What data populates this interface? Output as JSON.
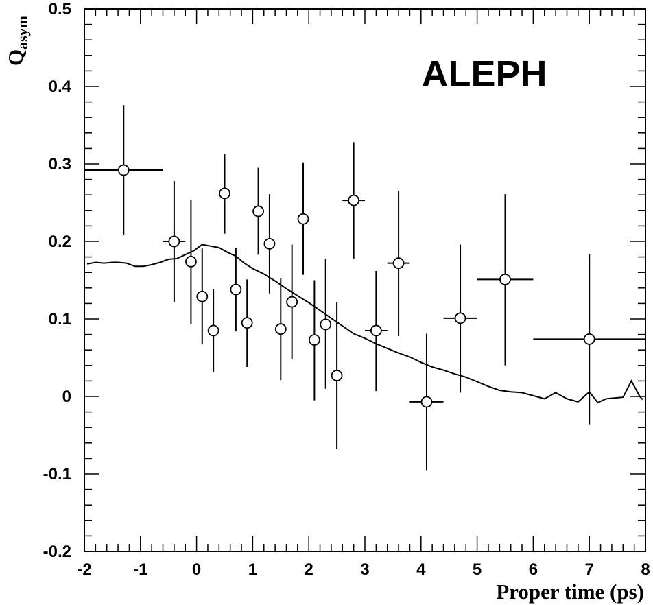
{
  "chart_data": {
    "type": "scatter",
    "title": "",
    "annotation": "ALEPH",
    "xlabel": "Proper time (ps)",
    "ylabel_main": "Q",
    "ylabel_sub": "asym",
    "xlim": [
      -2,
      8
    ],
    "ylim": [
      -0.2,
      0.5
    ],
    "grid": false,
    "x_ticks": [
      {
        "value": -2,
        "label": "-2"
      },
      {
        "value": -1,
        "label": "-1"
      },
      {
        "value": 0,
        "label": "0"
      },
      {
        "value": 1,
        "label": "1"
      },
      {
        "value": 2,
        "label": "2"
      },
      {
        "value": 3,
        "label": "3"
      },
      {
        "value": 4,
        "label": "4"
      },
      {
        "value": 5,
        "label": "5"
      },
      {
        "value": 6,
        "label": "6"
      },
      {
        "value": 7,
        "label": "7"
      },
      {
        "value": 8,
        "label": "8"
      }
    ],
    "y_ticks": [
      {
        "value": -0.2,
        "label": "-0.2"
      },
      {
        "value": -0.1,
        "label": "-0.1"
      },
      {
        "value": 0,
        "label": "0"
      },
      {
        "value": 0.1,
        "label": "0.1"
      },
      {
        "value": 0.2,
        "label": "0.2"
      },
      {
        "value": 0.3,
        "label": "0.3"
      },
      {
        "value": 0.4,
        "label": "0.4"
      },
      {
        "value": 0.5,
        "label": "0.5"
      }
    ],
    "points": [
      {
        "x": -1.3,
        "y": 0.292,
        "xlo": -2.0,
        "xhi": -0.6,
        "ylo": 0.208,
        "yhi": 0.376
      },
      {
        "x": -0.4,
        "y": 0.2,
        "xlo": -0.6,
        "xhi": -0.2,
        "ylo": 0.122,
        "yhi": 0.278
      },
      {
        "x": -0.1,
        "y": 0.174,
        "xlo": -0.1,
        "xhi": -0.1,
        "ylo": 0.093,
        "yhi": 0.253
      },
      {
        "x": 0.1,
        "y": 0.129,
        "xlo": 0.1,
        "xhi": 0.1,
        "ylo": 0.067,
        "yhi": 0.191
      },
      {
        "x": 0.3,
        "y": 0.085,
        "xlo": 0.3,
        "xhi": 0.3,
        "ylo": 0.031,
        "yhi": 0.138
      },
      {
        "x": 0.5,
        "y": 0.262,
        "xlo": 0.5,
        "xhi": 0.5,
        "ylo": 0.21,
        "yhi": 0.313
      },
      {
        "x": 0.7,
        "y": 0.138,
        "xlo": 0.7,
        "xhi": 0.7,
        "ylo": 0.084,
        "yhi": 0.192
      },
      {
        "x": 0.9,
        "y": 0.095,
        "xlo": 0.9,
        "xhi": 0.9,
        "ylo": 0.038,
        "yhi": 0.151
      },
      {
        "x": 1.1,
        "y": 0.239,
        "xlo": 1.1,
        "xhi": 1.1,
        "ylo": 0.183,
        "yhi": 0.295
      },
      {
        "x": 1.3,
        "y": 0.197,
        "xlo": 1.3,
        "xhi": 1.3,
        "ylo": 0.133,
        "yhi": 0.261
      },
      {
        "x": 1.5,
        "y": 0.087,
        "xlo": 1.5,
        "xhi": 1.5,
        "ylo": 0.021,
        "yhi": 0.153
      },
      {
        "x": 1.7,
        "y": 0.122,
        "xlo": 1.7,
        "xhi": 1.7,
        "ylo": 0.048,
        "yhi": 0.196
      },
      {
        "x": 1.9,
        "y": 0.229,
        "xlo": 1.9,
        "xhi": 1.9,
        "ylo": 0.157,
        "yhi": 0.302
      },
      {
        "x": 2.1,
        "y": 0.073,
        "xlo": 2.1,
        "xhi": 2.1,
        "ylo": -0.005,
        "yhi": 0.15
      },
      {
        "x": 2.3,
        "y": 0.093,
        "xlo": 2.3,
        "xhi": 2.3,
        "ylo": 0.01,
        "yhi": 0.177
      },
      {
        "x": 2.5,
        "y": 0.027,
        "xlo": 2.5,
        "xhi": 2.5,
        "ylo": -0.068,
        "yhi": 0.122
      },
      {
        "x": 2.8,
        "y": 0.253,
        "xlo": 2.6,
        "xhi": 3.0,
        "ylo": 0.178,
        "yhi": 0.328
      },
      {
        "x": 3.2,
        "y": 0.085,
        "xlo": 3.0,
        "xhi": 3.4,
        "ylo": 0.007,
        "yhi": 0.162
      },
      {
        "x": 3.6,
        "y": 0.172,
        "xlo": 3.4,
        "xhi": 3.8,
        "ylo": 0.078,
        "yhi": 0.265
      },
      {
        "x": 4.1,
        "y": -0.007,
        "xlo": 3.8,
        "xhi": 4.4,
        "ylo": -0.095,
        "yhi": 0.081
      },
      {
        "x": 4.7,
        "y": 0.101,
        "xlo": 4.4,
        "xhi": 5.0,
        "ylo": 0.005,
        "yhi": 0.196
      },
      {
        "x": 5.5,
        "y": 0.151,
        "xlo": 5.0,
        "xhi": 6.0,
        "ylo": 0.04,
        "yhi": 0.261
      },
      {
        "x": 7.0,
        "y": 0.074,
        "xlo": 6.0,
        "xhi": 8.0,
        "ylo": -0.036,
        "yhi": 0.184
      }
    ],
    "curve": {
      "x": [
        -1.95,
        -1.8,
        -1.65,
        -1.5,
        -1.4,
        -1.25,
        -1.1,
        -0.95,
        -0.8,
        -0.65,
        -0.5,
        -0.35,
        -0.2,
        -0.05,
        0.1,
        0.25,
        0.4,
        0.55,
        0.7,
        0.85,
        1.0,
        1.2,
        1.4,
        1.6,
        1.8,
        2.0,
        2.2,
        2.4,
        2.6,
        2.8,
        3.0,
        3.2,
        3.4,
        3.6,
        3.8,
        4.0,
        4.2,
        4.4,
        4.6,
        4.8,
        5.0,
        5.2,
        5.4,
        5.6,
        5.8,
        6.0,
        6.2,
        6.4,
        6.6,
        6.8,
        7.0,
        7.15,
        7.3,
        7.45,
        7.6,
        7.75,
        7.9,
        7.95
      ],
      "y": [
        0.171,
        0.173,
        0.172,
        0.173,
        0.173,
        0.172,
        0.168,
        0.168,
        0.17,
        0.173,
        0.177,
        0.178,
        0.183,
        0.188,
        0.196,
        0.194,
        0.192,
        0.186,
        0.181,
        0.172,
        0.165,
        0.158,
        0.149,
        0.139,
        0.13,
        0.121,
        0.111,
        0.101,
        0.091,
        0.081,
        0.075,
        0.068,
        0.062,
        0.056,
        0.051,
        0.044,
        0.038,
        0.034,
        0.029,
        0.025,
        0.019,
        0.013,
        0.008,
        0.006,
        0.005,
        0.001,
        -0.003,
        0.005,
        -0.003,
        -0.007,
        0.006,
        -0.008,
        -0.003,
        -0.002,
        -0.001,
        0.02,
        0.0,
        -0.004
      ]
    }
  }
}
